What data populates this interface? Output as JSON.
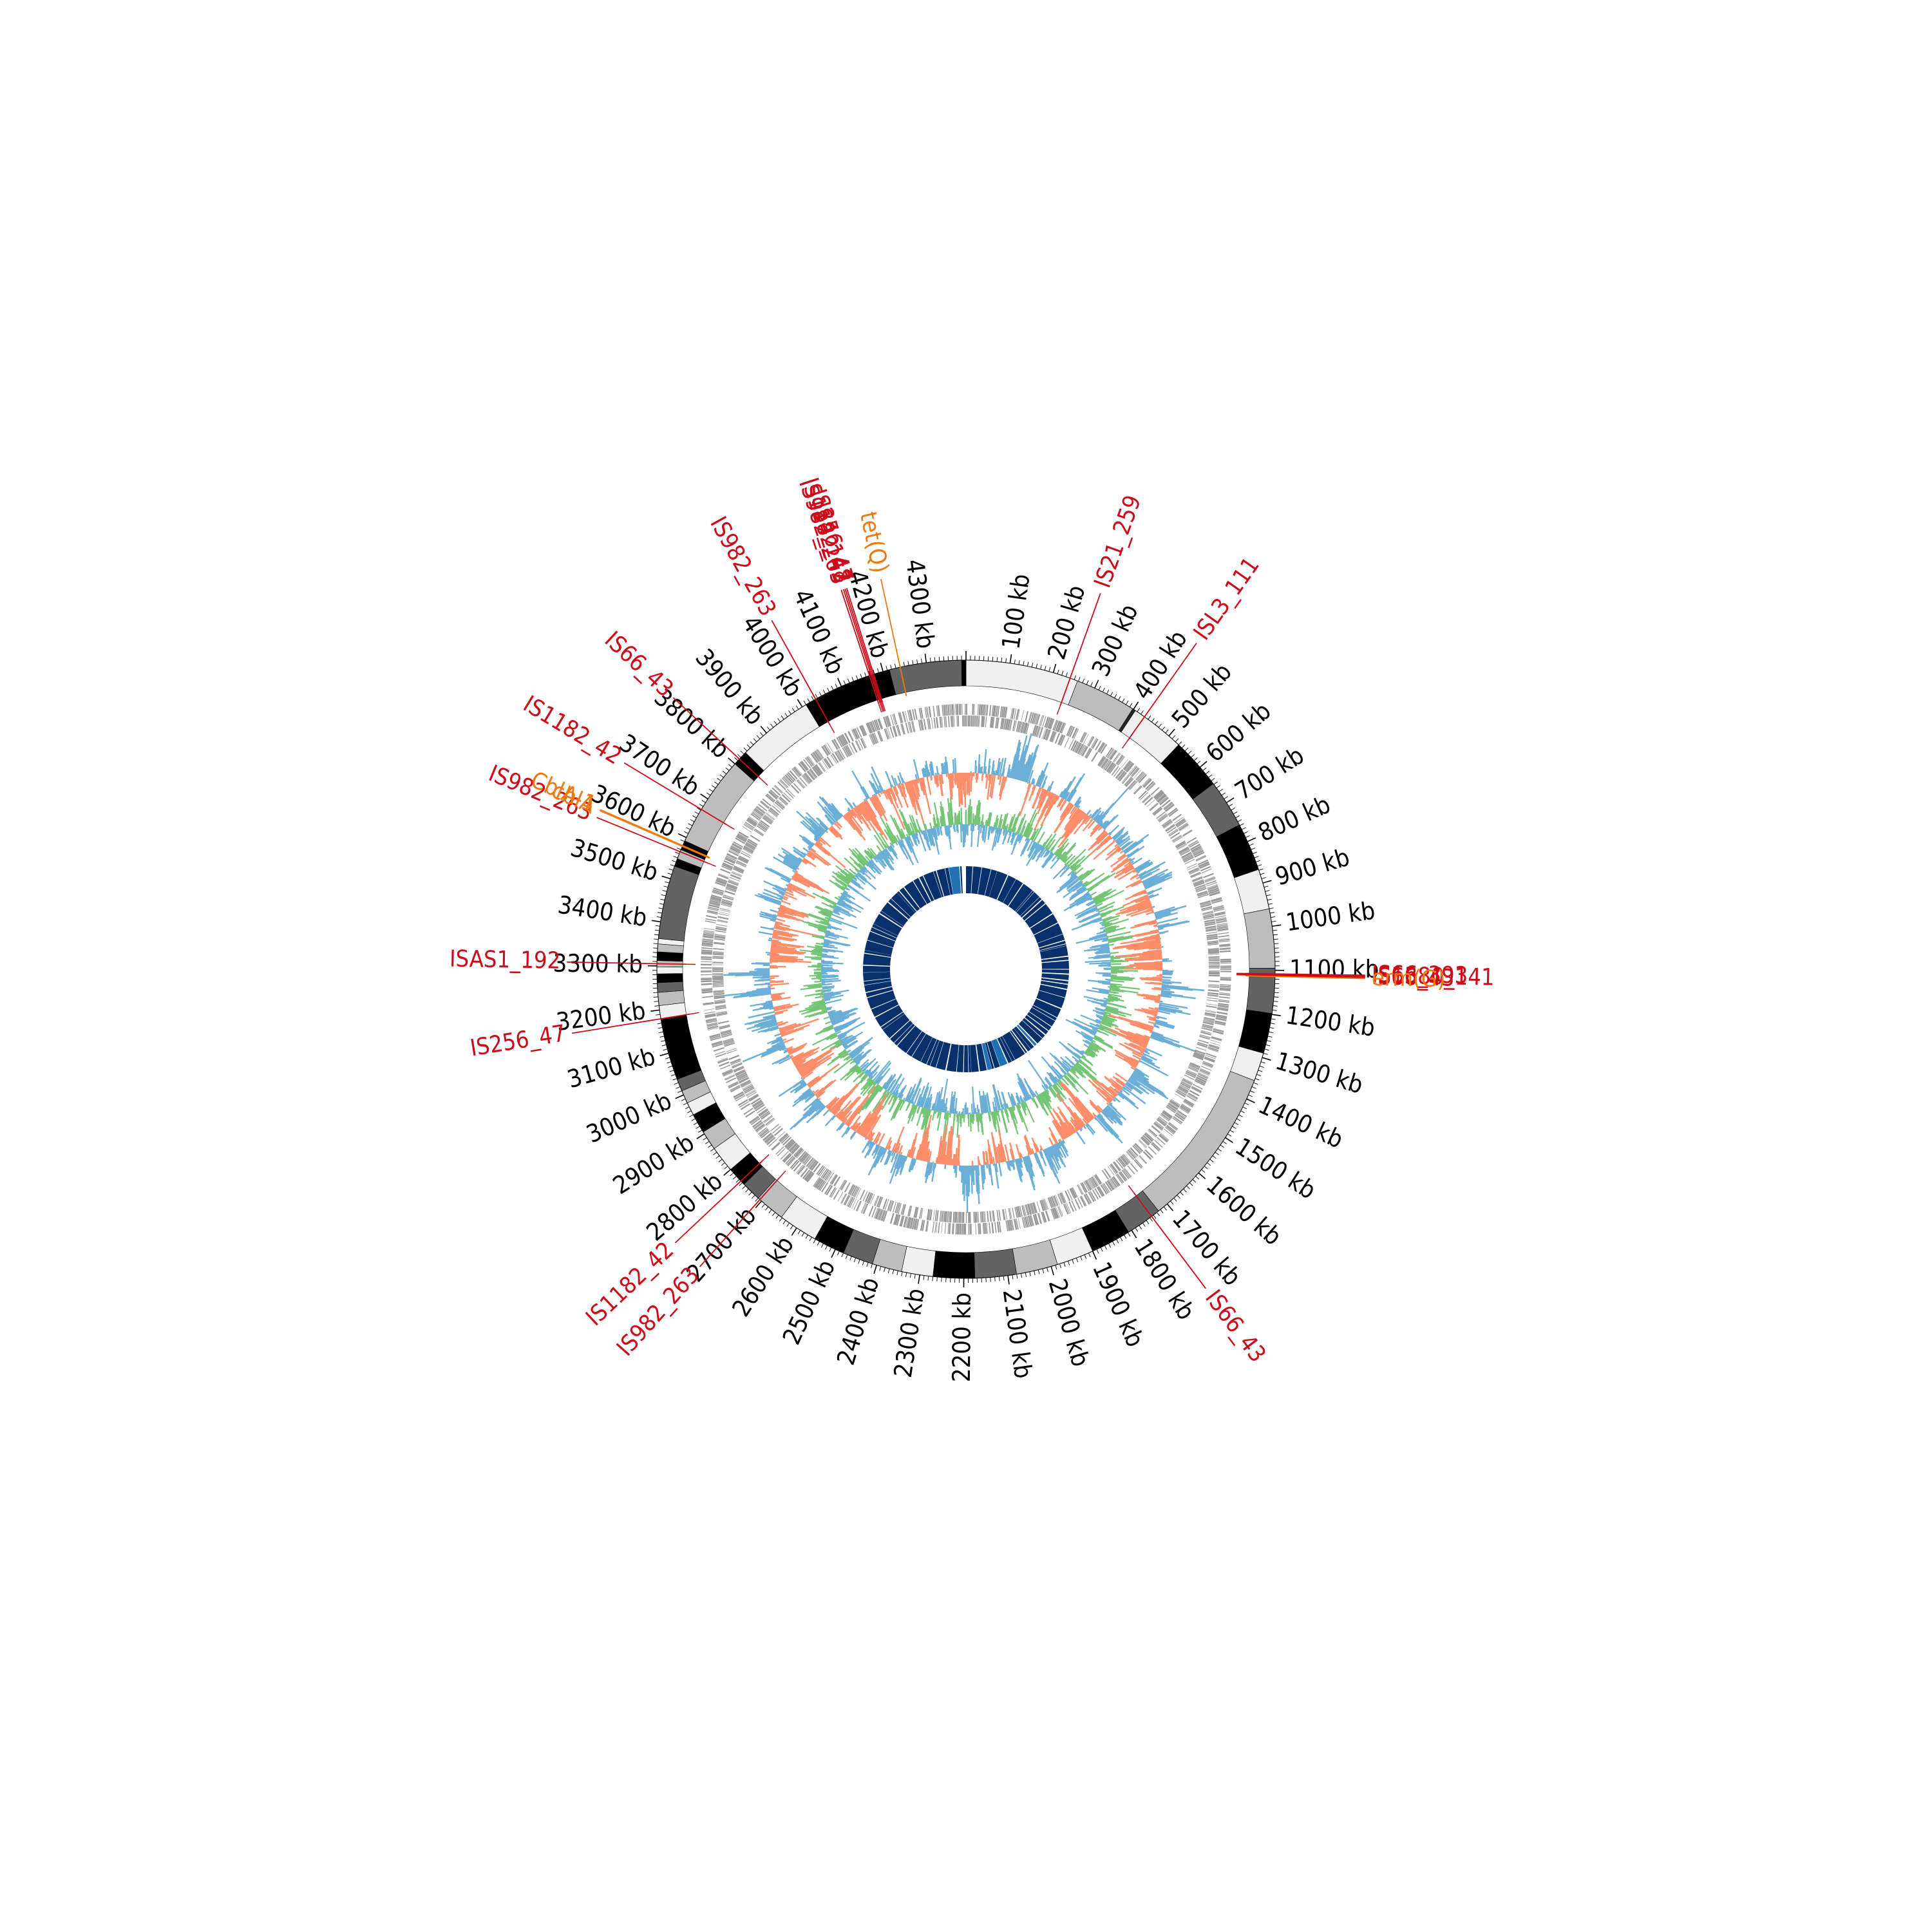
{
  "figure": {
    "genome_length_kb": 4390,
    "tick_labels": [
      "100 kb",
      "200 kb",
      "300 kb",
      "400 kb",
      "500 kb",
      "600 kb",
      "700 kb",
      "800 kb",
      "900 kb",
      "1000 kb",
      "1100 kb",
      "1200 kb",
      "1300 kb",
      "1400 kb",
      "1500 kb",
      "1600 kb",
      "1700 kb",
      "1800 kb",
      "1900 kb",
      "2000 kb",
      "2100 kb",
      "2200 kb",
      "2300 kb",
      "2400 kb",
      "2500 kb",
      "2600 kb",
      "2700 kb",
      "2800 kb",
      "2900 kb",
      "3000 kb",
      "3100 kb",
      "3200 kb",
      "3300 kb",
      "3400 kb",
      "3500 kb",
      "3600 kb",
      "3700 kb",
      "3800 kb",
      "3900 kb",
      "4000 kb",
      "4100 kb",
      "4200 kb",
      "4300 kb"
    ],
    "contigs": [
      {
        "start": 0,
        "end": 258,
        "shade": "#f0f0f0"
      },
      {
        "start": 258,
        "end": 398,
        "shade": "#bdbdbd"
      },
      {
        "start": 398,
        "end": 405,
        "shade": "#252525"
      },
      {
        "start": 405,
        "end": 530,
        "shade": "#f0f0f0"
      },
      {
        "start": 530,
        "end": 648,
        "shade": "#000000"
      },
      {
        "start": 648,
        "end": 758,
        "shade": "#636363"
      },
      {
        "start": 758,
        "end": 868,
        "shade": "#000000"
      },
      {
        "start": 868,
        "end": 960,
        "shade": "#f0f0f0"
      },
      {
        "start": 960,
        "end": 1095,
        "shade": "#bdbdbd"
      },
      {
        "start": 1095,
        "end": 1198,
        "shade": "#636363"
      },
      {
        "start": 1198,
        "end": 1290,
        "shade": "#000000"
      },
      {
        "start": 1290,
        "end": 1355,
        "shade": "#f0f0f0"
      },
      {
        "start": 1355,
        "end": 1725,
        "shade": "#bdbdbd"
      },
      {
        "start": 1725,
        "end": 1808,
        "shade": "#636363"
      },
      {
        "start": 1808,
        "end": 1900,
        "shade": "#000000"
      },
      {
        "start": 1900,
        "end": 1985,
        "shade": "#f0f0f0"
      },
      {
        "start": 1985,
        "end": 2080,
        "shade": "#bdbdbd"
      },
      {
        "start": 2080,
        "end": 2175,
        "shade": "#636363"
      },
      {
        "start": 2175,
        "end": 2270,
        "shade": "#000000"
      },
      {
        "start": 2270,
        "end": 2342,
        "shade": "#f0f0f0"
      },
      {
        "start": 2342,
        "end": 2410,
        "shade": "#bdbdbd"
      },
      {
        "start": 2410,
        "end": 2480,
        "shade": "#636363"
      },
      {
        "start": 2480,
        "end": 2552,
        "shade": "#000000"
      },
      {
        "start": 2552,
        "end": 2642,
        "shade": "#f0f0f0"
      },
      {
        "start": 2642,
        "end": 2710,
        "shade": "#bdbdbd"
      },
      {
        "start": 2710,
        "end": 2755,
        "shade": "#636363"
      },
      {
        "start": 2755,
        "end": 2800,
        "shade": "#000000"
      },
      {
        "start": 2800,
        "end": 2860,
        "shade": "#f0f0f0"
      },
      {
        "start": 2860,
        "end": 2905,
        "shade": "#bdbdbd"
      },
      {
        "start": 2905,
        "end": 2950,
        "shade": "#000000"
      },
      {
        "start": 2950,
        "end": 2980,
        "shade": "#f0f0f0"
      },
      {
        "start": 2980,
        "end": 3010,
        "shade": "#bdbdbd"
      },
      {
        "start": 3010,
        "end": 3038,
        "shade": "#636363"
      },
      {
        "start": 3038,
        "end": 3180,
        "shade": "#000000"
      },
      {
        "start": 3180,
        "end": 3210,
        "shade": "#f0f0f0"
      },
      {
        "start": 3210,
        "end": 3240,
        "shade": "#bdbdbd"
      },
      {
        "start": 3240,
        "end": 3262,
        "shade": "#636363"
      },
      {
        "start": 3262,
        "end": 3282,
        "shade": "#000000"
      },
      {
        "start": 3282,
        "end": 3298,
        "shade": "#f0f0f0"
      },
      {
        "start": 3298,
        "end": 3312,
        "shade": "#bdbdbd"
      },
      {
        "start": 3312,
        "end": 3332,
        "shade": "#000000"
      },
      {
        "start": 3332,
        "end": 3350,
        "shade": "#bdbdbd"
      },
      {
        "start": 3350,
        "end": 3362,
        "shade": "#f0f0f0"
      },
      {
        "start": 3362,
        "end": 3530,
        "shade": "#636363"
      },
      {
        "start": 3530,
        "end": 3548,
        "shade": "#000000"
      },
      {
        "start": 3548,
        "end": 3570,
        "shade": "#bdbdbd"
      },
      {
        "start": 3570,
        "end": 3592,
        "shade": "#000000"
      },
      {
        "start": 3592,
        "end": 3800,
        "shade": "#bdbdbd"
      },
      {
        "start": 3800,
        "end": 3835,
        "shade": "#000000"
      },
      {
        "start": 3835,
        "end": 4010,
        "shade": "#f0f0f0"
      },
      {
        "start": 4010,
        "end": 4025,
        "shade": "#000000"
      },
      {
        "start": 4025,
        "end": 4215,
        "shade": "#000000"
      },
      {
        "start": 4215,
        "end": 4380,
        "shade": "#636363"
      },
      {
        "start": 4380,
        "end": 4390,
        "shade": "#000000"
      }
    ],
    "colors": {
      "is_element": "#cc0a1a",
      "resistance_gene": "#f07810",
      "gc_positive": "#6baed6",
      "gc_negative": "#fc8d6a",
      "skew_positive": "#74c476",
      "skew_negative": "#6baed6",
      "genes_track": "#969696",
      "core_block": "#08306b",
      "core_highlight": "#2171b5"
    },
    "is_labels": [
      {
        "text": "IS21_259",
        "pos": 240
      },
      {
        "text": "ISL3_111",
        "pos": 430
      },
      {
        "text": "IS66_393",
        "pos": 1108
      },
      {
        "text": "IS1380_141",
        "pos": 1110
      },
      {
        "text": "IS66_43",
        "pos": 1112
      },
      {
        "text": "IS66_43",
        "pos": 1745
      },
      {
        "text": "IS982_263",
        "pos": 2705
      },
      {
        "text": "IS1182_42",
        "pos": 2765
      },
      {
        "text": "IS256_47",
        "pos": 3180
      },
      {
        "text": "ISAS1_192",
        "pos": 3305
      },
      {
        "text": "IS982_263",
        "pos": 3565
      },
      {
        "text": "IS1182_42",
        "pos": 3672
      },
      {
        "text": "IS66_43",
        "pos": 3815
      },
      {
        "text": "IS982_263",
        "pos": 4035
      },
      {
        "text": "IS982_263",
        "pos": 4168
      },
      {
        "text": "IS1182_42",
        "pos": 4172
      },
      {
        "text": "IS4_148",
        "pos": 4175
      },
      {
        "text": "IS256_47",
        "pos": 4178
      }
    ],
    "resistance_labels": [
      {
        "text": "tet(Q)",
        "pos": 4240
      },
      {
        "text": "erm(G)",
        "pos": 1114
      },
      {
        "text": "cblA",
        "pos": 3578
      },
      {
        "text": "CblA-1",
        "pos": 3580
      }
    ]
  }
}
